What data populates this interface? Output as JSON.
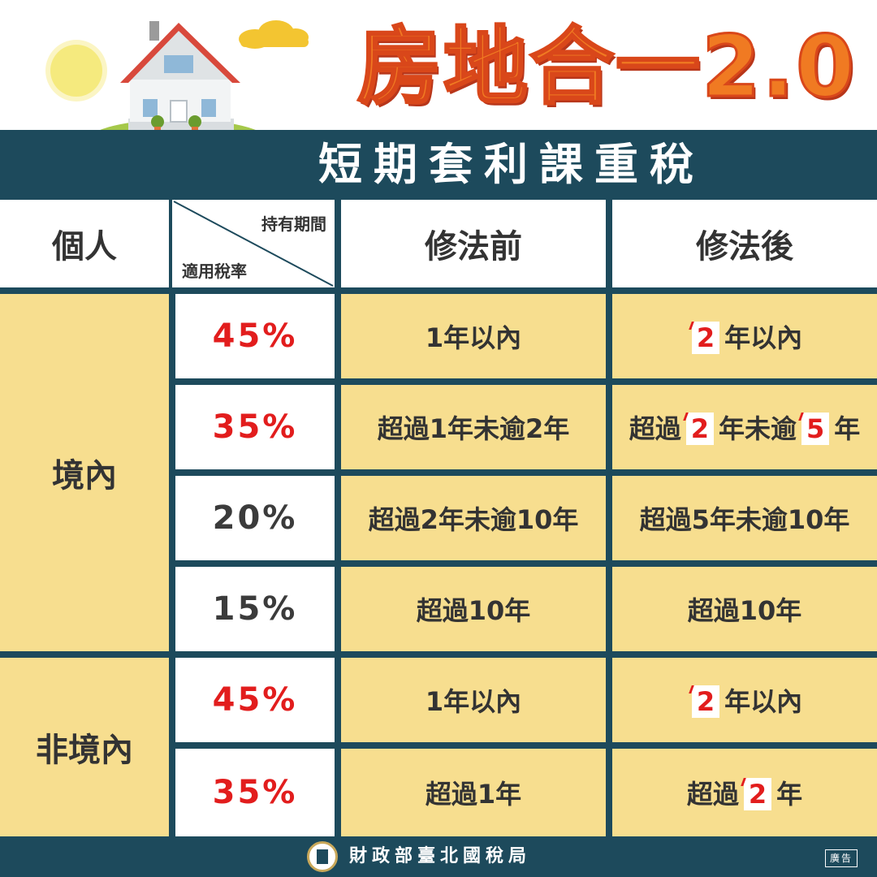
{
  "title": "房地合一2.0",
  "banner": "短期套利課重稅",
  "table": {
    "header": {
      "group": "個人",
      "diag_top": "持有期間",
      "diag_bottom": "適用稅率",
      "before": "修法前",
      "after": "修法後"
    },
    "groups": [
      {
        "label": "境內"
      },
      {
        "label": "非境內"
      }
    ],
    "rows": [
      {
        "rate": "45%",
        "before": "1年以內",
        "after_pre": "",
        "after_hl1": "2",
        "after_mid": "年以內",
        "after_hl2": "",
        "after_post": ""
      },
      {
        "rate": "35%",
        "before": "超過1年未逾2年",
        "after_pre": "超過",
        "after_hl1": "2",
        "after_mid": "年未逾",
        "after_hl2": "5",
        "after_post": "年"
      },
      {
        "rate": "20%",
        "before": "超過2年未逾10年",
        "after": "超過5年未逾10年"
      },
      {
        "rate": "15%",
        "before": "超過10年",
        "after": "超過10年"
      },
      {
        "rate": "45%",
        "before": "1年以內",
        "after_pre": "",
        "after_hl1": "2",
        "after_mid": "年以內",
        "after_hl2": "",
        "after_post": ""
      },
      {
        "rate": "35%",
        "before": "超過1年",
        "after_pre": "超過",
        "after_hl1": "2",
        "after_mid": "年",
        "after_hl2": "",
        "after_post": ""
      }
    ]
  },
  "footer": {
    "agency": "財政部臺北國稅局",
    "ad_label": "廣告"
  },
  "colors": {
    "navy": "#1d4a5c",
    "cell_yellow": "#f7de8f",
    "rate_red": "#e21d1d",
    "title_orange": "#f07a22"
  },
  "icons": [
    "house-illustration",
    "sun-icon",
    "cloud-icon",
    "agency-seal-icon"
  ]
}
